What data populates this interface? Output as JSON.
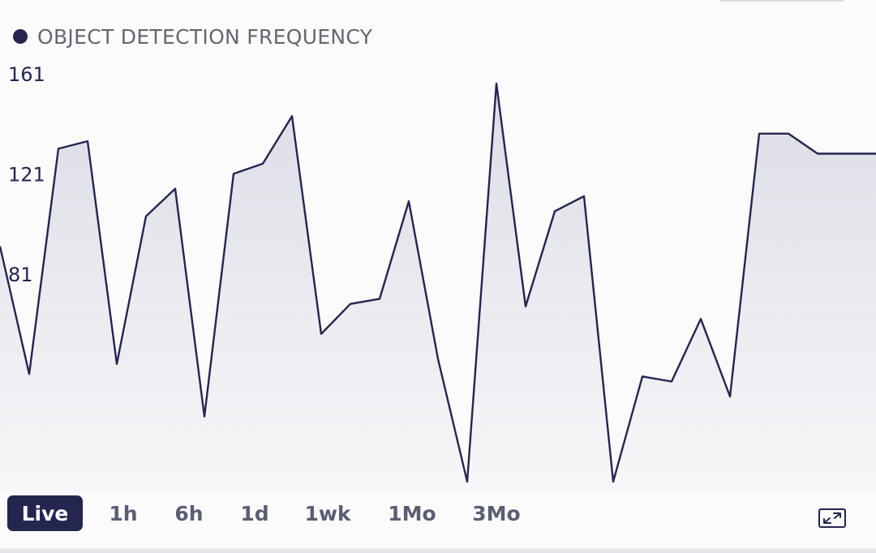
{
  "widget": {
    "title": "OBJECT DETECTION FREQUENCY",
    "accent_color": "#23264f"
  },
  "time_ranges": [
    {
      "label": "Live",
      "active": true
    },
    {
      "label": "1h",
      "active": false
    },
    {
      "label": "6h",
      "active": false
    },
    {
      "label": "1d",
      "active": false
    },
    {
      "label": "1wk",
      "active": false
    },
    {
      "label": "1Mo",
      "active": false
    },
    {
      "label": "3Mo",
      "active": false
    }
  ],
  "icons": {
    "expand": "expand-icon"
  },
  "chart_data": {
    "type": "area",
    "title": "OBJECT DETECTION FREQUENCY",
    "xlabel": "",
    "ylabel": "",
    "ylim": [
      1,
      161
    ],
    "yticks": [
      "161",
      "121",
      "81",
      "41",
      "1"
    ],
    "grid": false,
    "line_color": "#23264f",
    "fill_color": "#e2e2ea",
    "series": [
      {
        "values": [
          95,
          44,
          134,
          137,
          48,
          107,
          118,
          27,
          124,
          128,
          147,
          60,
          72,
          74,
          113,
          50,
          1,
          160,
          71,
          109,
          115,
          1,
          43,
          41,
          66,
          35,
          140,
          140,
          132,
          132
        ]
      }
    ]
  }
}
